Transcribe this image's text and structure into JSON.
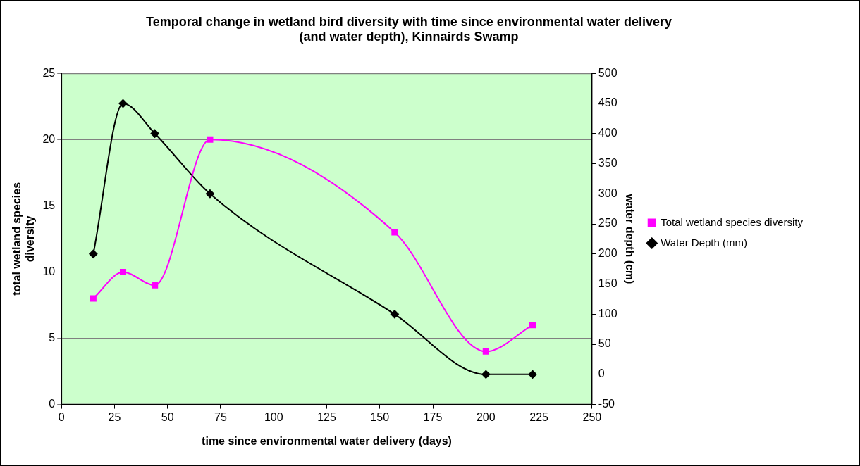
{
  "chart_data": {
    "type": "line",
    "title": "Temporal change in wetland bird diversity with time since environmental water delivery\n(and water depth), Kinnairds Swamp",
    "xlabel": "time since environmental water delivery (days)",
    "ylabel": "total wetland species\ndiversity",
    "y2label": "water depth (cm)",
    "series": [
      {
        "name": "Total wetland species diversity",
        "color": "#ff00ff",
        "marker": "square",
        "x": [
          15,
          29,
          44,
          70,
          157,
          200,
          222
        ],
        "values": [
          8,
          10,
          9,
          20,
          13,
          4,
          6
        ]
      },
      {
        "name": "Water Depth (mm)",
        "color": "#000000",
        "marker": "diamond",
        "axis": "y2",
        "x": [
          15,
          29,
          44,
          70,
          157,
          200,
          222
        ],
        "values": [
          200,
          450,
          400,
          300,
          100,
          0,
          0
        ]
      }
    ],
    "xlim": [
      0,
      250
    ],
    "xticks": [
      0,
      25,
      50,
      75,
      100,
      125,
      150,
      175,
      200,
      225,
      250
    ],
    "ylim": [
      0,
      25
    ],
    "yticks": [
      0,
      5,
      10,
      15,
      20,
      25
    ],
    "y2lim": [
      -50,
      500
    ],
    "y2ticks": [
      -50,
      0,
      50,
      100,
      150,
      200,
      250,
      300,
      350,
      400,
      450,
      500
    ],
    "grid": "y",
    "legend": "right",
    "line_style": "solid"
  }
}
